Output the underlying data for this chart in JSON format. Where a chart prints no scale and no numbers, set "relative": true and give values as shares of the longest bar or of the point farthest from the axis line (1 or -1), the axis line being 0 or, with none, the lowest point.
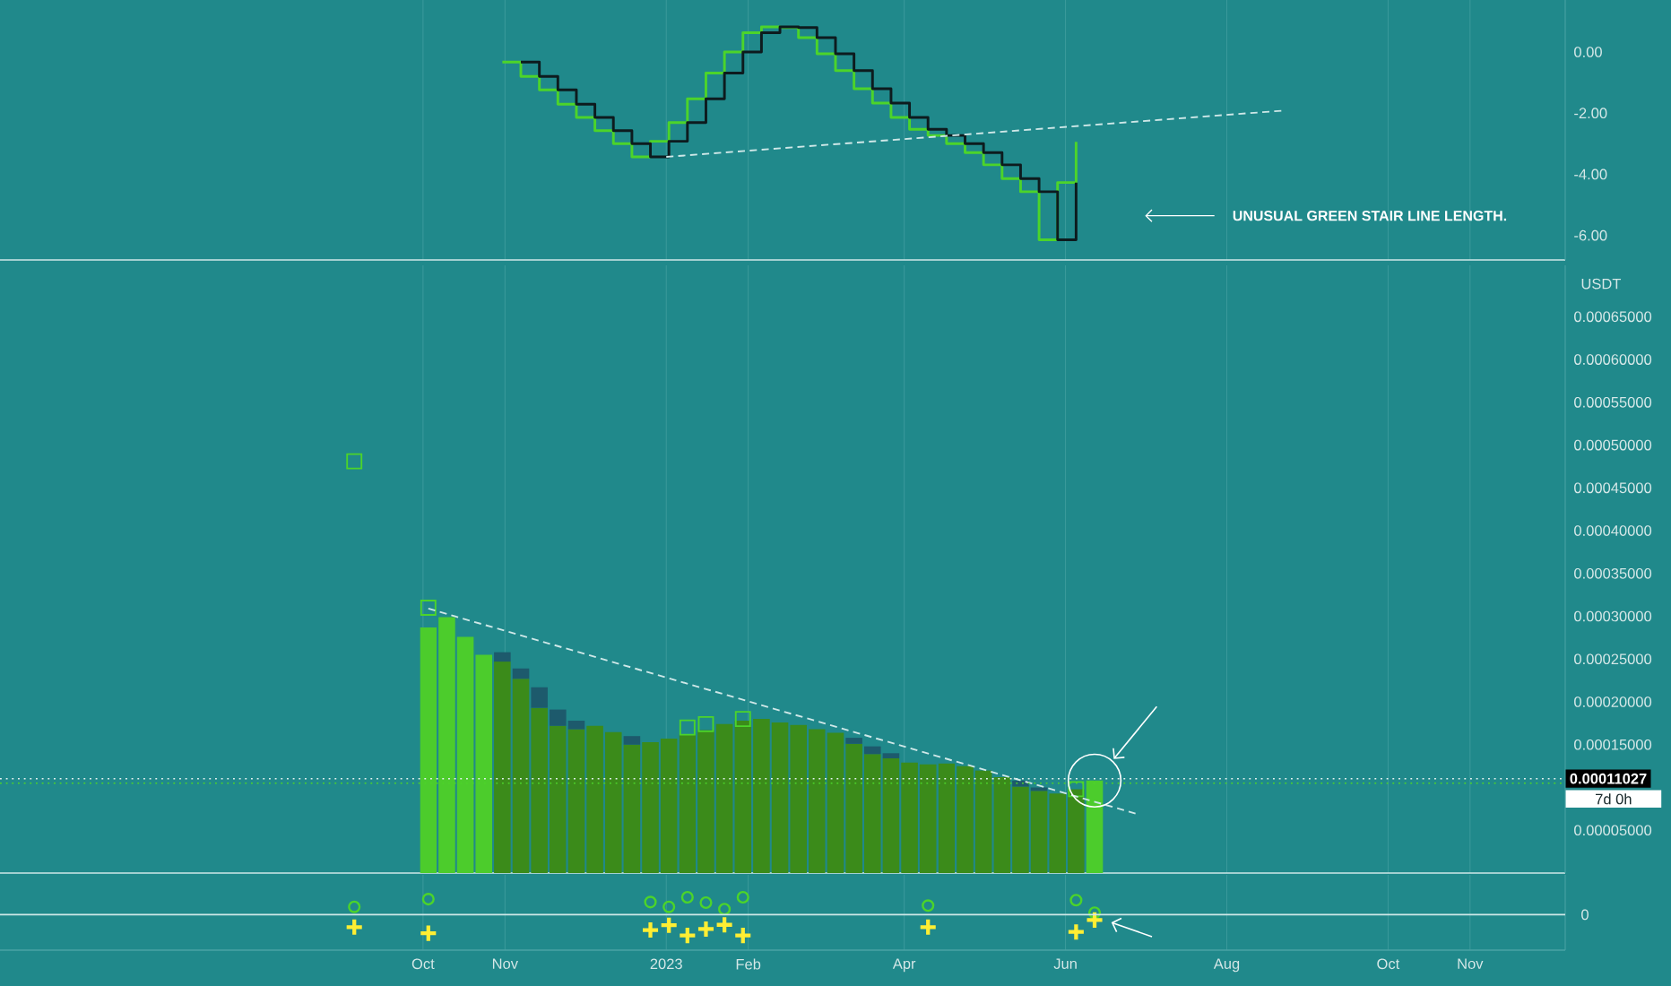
{
  "chart_data": [
    {
      "type": "step",
      "xlim": [
        "2022-04-24",
        "2023-12-07"
      ],
      "ylim": [
        -6.8,
        1.7
      ],
      "tick_labels": "y",
      "grid": "x",
      "xticks": [
        {
          "value": "2022-10-01",
          "label": null
        },
        {
          "value": "2022-11-01",
          "label": null
        },
        {
          "value": "2023-01-01",
          "label": null
        },
        {
          "value": "2023-02-01",
          "label": null
        },
        {
          "value": "2023-04-01",
          "label": null
        },
        {
          "value": "2023-06-01",
          "label": null
        },
        {
          "value": "2023-08-01",
          "label": null
        },
        {
          "value": "2023-10-01",
          "label": null
        },
        {
          "value": "2023-11-01",
          "label": null
        }
      ],
      "yticks": [
        {
          "value": 0,
          "label": "0.00"
        },
        {
          "value": -2,
          "label": "-2.00"
        },
        {
          "value": -4,
          "label": "-4.00"
        },
        {
          "value": -6,
          "label": "-6.00"
        }
      ],
      "series": [
        {
          "color": "#4cd42a",
          "x": [
            "2022-10-31",
            "2022-11-07",
            "2022-11-14",
            "2022-11-21",
            "2022-11-28",
            "2022-12-05",
            "2022-12-12",
            "2022-12-19",
            "2022-12-26",
            "2023-01-02",
            "2023-01-09",
            "2023-01-16",
            "2023-01-23",
            "2023-01-30",
            "2023-02-06",
            "2023-02-13",
            "2023-02-20",
            "2023-02-27",
            "2023-03-06",
            "2023-03-13",
            "2023-03-20",
            "2023-03-27",
            "2023-04-03",
            "2023-04-10",
            "2023-04-17",
            "2023-04-24",
            "2023-05-01",
            "2023-05-08",
            "2023-05-15",
            "2023-05-22",
            "2023-05-29",
            "2023-06-05"
          ],
          "values": [
            -0.33,
            -0.8,
            -1.24,
            -1.71,
            -2.14,
            -2.57,
            -3.0,
            -3.43,
            -2.92,
            -2.31,
            -1.53,
            -0.69,
            0.0,
            0.63,
            0.82,
            0.8,
            0.47,
            -0.06,
            -0.61,
            -1.2,
            -1.67,
            -2.14,
            -2.53,
            -2.73,
            -3.0,
            -3.29,
            -3.69,
            -4.14,
            -4.57,
            -6.14,
            -4.27,
            -2.94
          ]
        },
        {
          "color": "#0d1b1e",
          "x": [
            "2022-11-07",
            "2022-11-14",
            "2022-11-21",
            "2022-11-28",
            "2022-12-05",
            "2022-12-12",
            "2022-12-19",
            "2022-12-26",
            "2023-01-02",
            "2023-01-09",
            "2023-01-16",
            "2023-01-23",
            "2023-01-30",
            "2023-02-06",
            "2023-02-13",
            "2023-02-20",
            "2023-02-27",
            "2023-03-06",
            "2023-03-13",
            "2023-03-20",
            "2023-03-27",
            "2023-04-03",
            "2023-04-10",
            "2023-04-17",
            "2023-04-24",
            "2023-05-01",
            "2023-05-08",
            "2023-05-15",
            "2023-05-22",
            "2023-05-29",
            "2023-06-05"
          ],
          "values": [
            -0.33,
            -0.8,
            -1.24,
            -1.71,
            -2.14,
            -2.57,
            -3.0,
            -3.43,
            -2.92,
            -2.31,
            -1.53,
            -0.69,
            0.0,
            0.63,
            0.82,
            0.8,
            0.47,
            -0.06,
            -0.61,
            -1.2,
            -1.67,
            -2.14,
            -2.53,
            -2.73,
            -3.0,
            -3.29,
            -3.69,
            -4.14,
            -4.57,
            -6.14,
            -4.27
          ]
        },
        {
          "type": "line",
          "line_style": "dashed",
          "color": "#cfe8e8",
          "x": [
            "2023-01-01",
            "2023-08-22"
          ],
          "values": [
            -3.43,
            -1.92
          ]
        }
      ],
      "annotations": [
        "UNUSUAL GREEN STAIR LINE LENGTH."
      ]
    },
    {
      "type": "bar",
      "stacked": true,
      "xlim": [
        "2022-04-24",
        "2023-12-07"
      ],
      "ylim": [
        0,
        0.00071
      ],
      "tick_labels": "y",
      "grid": "x",
      "ylabel": "USDT",
      "xticks": [
        {
          "value": "2022-10-01",
          "label": null
        },
        {
          "value": "2022-11-01",
          "label": null
        },
        {
          "value": "2023-01-01",
          "label": null
        },
        {
          "value": "2023-02-01",
          "label": null
        },
        {
          "value": "2023-04-01",
          "label": null
        },
        {
          "value": "2023-06-01",
          "label": null
        },
        {
          "value": "2023-08-01",
          "label": null
        },
        {
          "value": "2023-10-01",
          "label": null
        },
        {
          "value": "2023-11-01",
          "label": null
        }
      ],
      "yticks": [
        {
          "value": 5e-05,
          "label": "0.00005000"
        },
        {
          "value": 0.00015,
          "label": "0.00015000"
        },
        {
          "value": 0.0002,
          "label": "0.00020000"
        },
        {
          "value": 0.00025,
          "label": "0.00025000"
        },
        {
          "value": 0.0003,
          "label": "0.00030000"
        },
        {
          "value": 0.00035,
          "label": "0.00035000"
        },
        {
          "value": 0.0004,
          "label": "0.00040000"
        },
        {
          "value": 0.00045,
          "label": "0.00045000"
        },
        {
          "value": 0.0005,
          "label": "0.00050000"
        },
        {
          "value": 0.00055,
          "label": "0.00055000"
        },
        {
          "value": 0.0006,
          "label": "0.00060000"
        },
        {
          "value": 0.00065,
          "label": "0.00065000"
        }
      ],
      "x": [
        "2022-10-03",
        "2022-10-10",
        "2022-10-17",
        "2022-10-24",
        "2022-10-31",
        "2022-11-07",
        "2022-11-14",
        "2022-11-21",
        "2022-11-28",
        "2022-12-05",
        "2022-12-12",
        "2022-12-19",
        "2022-12-26",
        "2023-01-02",
        "2023-01-09",
        "2023-01-16",
        "2023-01-23",
        "2023-01-30",
        "2023-02-06",
        "2023-02-13",
        "2023-02-20",
        "2023-02-27",
        "2023-03-06",
        "2023-03-13",
        "2023-03-20",
        "2023-03-27",
        "2023-04-03",
        "2023-04-10",
        "2023-04-17",
        "2023-04-24",
        "2023-05-01",
        "2023-05-08",
        "2023-05-15",
        "2023-05-22",
        "2023-05-29",
        "2023-06-05",
        "2023-06-12"
      ],
      "series": [
        {
          "colors": [
            "#4ccc2c",
            "#4ccc2c",
            "#4ccc2c",
            "#4ccc2c",
            "#3b8b1a",
            "#3b8b1a",
            "#3b8b1a",
            "#3b8b1a",
            "#3b8b1a",
            "#3b8b1a",
            "#3b8b1a",
            "#3b8b1a",
            "#3b8b1a",
            "#3b8b1a",
            "#3b8b1a",
            "#3b8b1a",
            "#3b8b1a",
            "#3b8b1a",
            "#3b8b1a",
            "#3b8b1a",
            "#3b8b1a",
            "#3b8b1a",
            "#3b8b1a",
            "#3b8b1a",
            "#3b8b1a",
            "#3b8b1a",
            "#3b8b1a",
            "#3b8b1a",
            "#3b8b1a",
            "#3b8b1a",
            "#3b8b1a",
            "#3b8b1a",
            "#3b8b1a",
            "#3b8b1a",
            "#3b8b1a",
            "#3b8b1a",
            "#4ccc2c"
          ],
          "values": [
            0.000287,
            0.000299,
            0.000276,
            0.000255,
            0.000247,
            0.000227,
            0.000193,
            0.000172,
            0.000168,
            0.000172,
            0.000165,
            0.00015,
            0.000153,
            0.000157,
            0.000162,
            0.000167,
            0.000174,
            0.000178,
            0.00018,
            0.000176,
            0.000173,
            0.000168,
            0.000164,
            0.000151,
            0.000139,
            0.000134,
            0.000129,
            0.000127,
            0.000128,
            0.000125,
            0.00012,
            0.000112,
            0.000101,
            9.6e-05,
            9.3e-05,
            9.8e-05,
            0.000108
          ]
        },
        {
          "color": "#1d5a6c",
          "values": [
            null,
            null,
            null,
            null,
            1.1e-05,
            1.2e-05,
            2.4e-05,
            1.9e-05,
            1e-05,
            null,
            null,
            1e-05,
            null,
            null,
            null,
            null,
            null,
            null,
            null,
            null,
            null,
            null,
            null,
            7e-06,
            9e-06,
            6e-06,
            null,
            null,
            null,
            null,
            null,
            null,
            7e-06,
            4e-06,
            null,
            null,
            null
          ]
        },
        {
          "type": "scatter",
          "marker": "square",
          "color": "#4cd42a",
          "x": [
            "2022-09-05",
            "2022-10-03",
            "2023-01-09",
            "2023-01-16",
            "2023-01-30",
            "2023-06-05"
          ],
          "values": [
            0.000481,
            0.00031,
            0.00017,
            0.000174,
            0.00018,
            9.8e-05
          ]
        },
        {
          "type": "line",
          "line_style": "dashed",
          "color": "#cfe8e8",
          "x": [
            "2022-10-03",
            "2023-06-28"
          ],
          "values": [
            0.000309,
            6.9e-05
          ]
        }
      ],
      "ref_lines": [
        {
          "axis": "y",
          "value": 0.00011027,
          "label": "0.00011027",
          "color": "#e8f4f4",
          "line_style": "dotted"
        },
        {
          "axis": "y",
          "value": 0.000105,
          "color": "#4cd42a",
          "line_style": "dotted"
        }
      ],
      "annotations": [
        "7d 0h"
      ]
    },
    {
      "type": "scatter",
      "relative": true,
      "xlim": [
        "2022-04-24",
        "2023-12-07"
      ],
      "grid": "x",
      "xticks": [
        {
          "value": "2022-10-01",
          "label": "Oct"
        },
        {
          "value": "2022-11-01",
          "label": "Nov"
        },
        {
          "value": "2023-01-01",
          "label": "2023"
        },
        {
          "value": "2023-02-01",
          "label": "Feb"
        },
        {
          "value": "2023-04-01",
          "label": "Apr"
        },
        {
          "value": "2023-06-01",
          "label": "Jun"
        },
        {
          "value": "2023-08-01",
          "label": "Aug"
        },
        {
          "value": "2023-10-01",
          "label": "Oct"
        },
        {
          "value": "2023-11-01",
          "label": "Nov"
        }
      ],
      "x": [
        "2022-09-05",
        "2022-10-03",
        "2022-12-26",
        "2023-01-02",
        "2023-01-09",
        "2023-01-16",
        "2023-01-23",
        "2023-01-30",
        "2023-04-10",
        "2023-06-05",
        "2023-06-12"
      ],
      "series": [
        {
          "marker": "circle",
          "color": "#4cd42a",
          "values": [
            0.37,
            0.74,
            0.6,
            0.37,
            0.83,
            0.57,
            0.26,
            0.83,
            0.43,
            0.69,
            0.09
          ]
        },
        {
          "marker": "cross",
          "color": "#ffee33",
          "values": [
            -0.6,
            -0.89,
            -0.74,
            -0.51,
            -1,
            -0.69,
            -0.49,
            -1,
            -0.6,
            -0.83,
            -0.26
          ]
        }
      ],
      "ref_lines": [
        {
          "axis": "y",
          "value": 0,
          "color": "#cfe8e8"
        }
      ],
      "annotations": [
        "0"
      ]
    }
  ]
}
